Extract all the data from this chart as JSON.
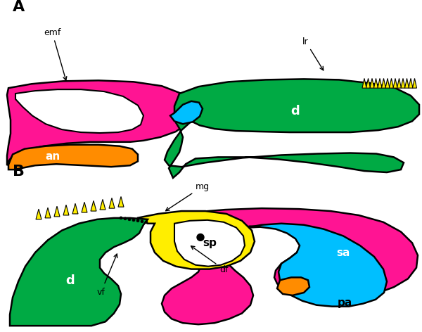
{
  "background_color": "#ffffff",
  "colors": {
    "dentary": "#00AA44",
    "surangular": "#FF1493",
    "angular": "#FF8C00",
    "prearticular": "#00BFFF",
    "splenial": "#FFEE00",
    "teeth": "#FFEE00",
    "outline": "#000000"
  }
}
